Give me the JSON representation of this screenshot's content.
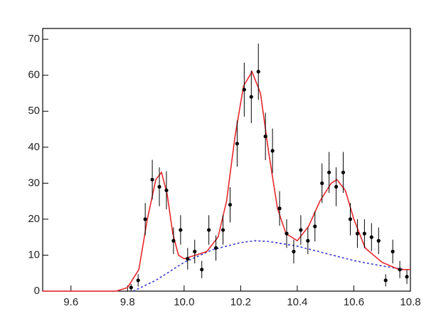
{
  "chart_data": {
    "type": "scatter",
    "xlim": [
      9.5,
      10.8
    ],
    "ylim": [
      0,
      73
    ],
    "xticks": [
      9.6,
      9.8,
      {
        "value": 10,
        "label": "10.0"
      },
      10.2,
      10.4,
      10.6,
      10.8
    ],
    "yticks": [
      0,
      10,
      20,
      30,
      40,
      50,
      60,
      70
    ],
    "series": [
      {
        "type": "errorbar",
        "color": "#000000",
        "x": [
          9.8125,
          9.8375,
          9.8625,
          9.8875,
          9.9125,
          9.9375,
          9.9625,
          9.9875,
          10.0125,
          10.0375,
          10.0625,
          10.0875,
          10.1125,
          10.1375,
          10.1625,
          10.1875,
          10.2125,
          10.2375,
          10.2625,
          10.2875,
          10.3125,
          10.3375,
          10.3625,
          10.3875,
          10.4125,
          10.4375,
          10.4625,
          10.4875,
          10.5125,
          10.5375,
          10.5625,
          10.5875,
          10.6125,
          10.6375,
          10.6625,
          10.6875,
          10.7125,
          10.7375,
          10.7625,
          10.7875
        ],
        "values": [
          1,
          3,
          20,
          31,
          29,
          28,
          14,
          17,
          9,
          11,
          6,
          17,
          12,
          17,
          24,
          41,
          56,
          54,
          61,
          43,
          39,
          23,
          16,
          11,
          17,
          14,
          18,
          30,
          33,
          29,
          33,
          20,
          16,
          16,
          15,
          14,
          3,
          11,
          6,
          4
        ],
        "errors": [
          1,
          1.7,
          4.5,
          5.5,
          5.4,
          5.3,
          3.7,
          4.1,
          3,
          3.3,
          2.4,
          4.1,
          3.5,
          4.1,
          4.9,
          6.4,
          7.5,
          7.3,
          7.8,
          6.6,
          6.2,
          4.8,
          4,
          3.3,
          4.1,
          3.7,
          4.2,
          5.5,
          5.7,
          5.4,
          5.7,
          4.5,
          4,
          4,
          3.9,
          3.7,
          1.7,
          3.3,
          2.4,
          2
        ]
      },
      {
        "type": "line",
        "color": "#e8262b",
        "x": [
          9.5,
          9.76,
          9.8,
          9.84,
          9.87,
          9.9,
          9.92,
          9.94,
          9.96,
          9.98,
          10.0,
          10.04,
          10.08,
          10.12,
          10.15,
          10.18,
          10.21,
          10.24,
          10.27,
          10.3,
          10.33,
          10.36,
          10.4,
          10.44,
          10.48,
          10.52,
          10.54,
          10.57,
          10.6,
          10.64,
          10.7,
          10.76,
          10.8
        ],
        "values": [
          0,
          0,
          1,
          6,
          20,
          31,
          33,
          27,
          16,
          10,
          9,
          10,
          11,
          15,
          25,
          43,
          57,
          61,
          55,
          38,
          23,
          16,
          14,
          18,
          25,
          30,
          31,
          28,
          20,
          12,
          8,
          6,
          6
        ]
      },
      {
        "type": "line",
        "color": "#3a3ad0",
        "dashed": true,
        "x": [
          9.82,
          9.9,
          10.0,
          10.1,
          10.2,
          10.25,
          10.3,
          10.4,
          10.5,
          10.6,
          10.7,
          10.78
        ],
        "values": [
          0,
          3,
          8,
          11.5,
          13.5,
          14,
          13.8,
          12.5,
          10.5,
          8.5,
          7,
          6
        ]
      }
    ]
  }
}
